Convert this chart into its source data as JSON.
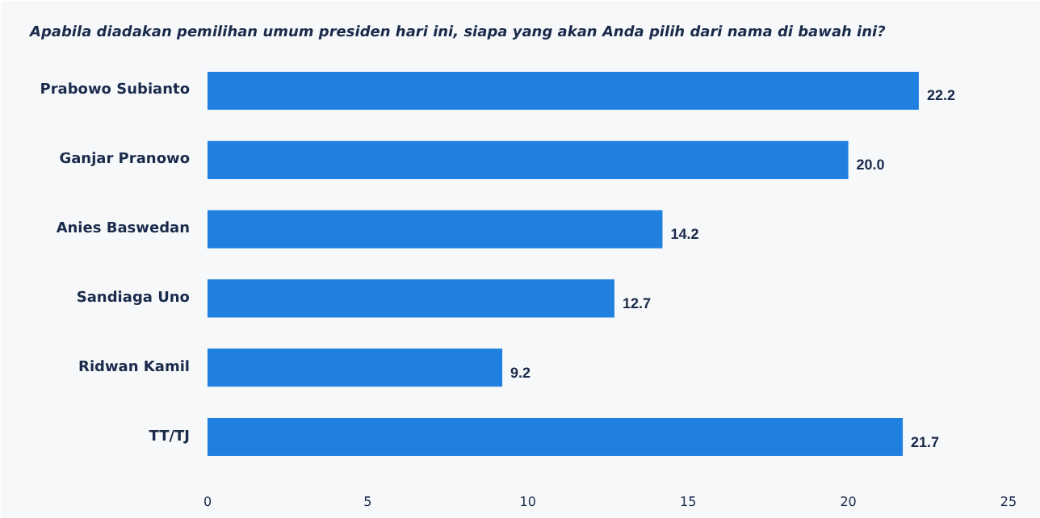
{
  "chart_data": {
    "type": "bar",
    "orientation": "horizontal",
    "title": "Apabila diadakan pemilihan umum presiden hari ini, siapa yang akan Anda pilih dari nama di bawah ini?",
    "categories": [
      "Prabowo Subianto",
      "Ganjar Pranowo",
      "Anies Baswedan",
      "Sandiaga Uno",
      "Ridwan Kamil",
      "TT/TJ"
    ],
    "values": [
      22.2,
      20.0,
      14.2,
      12.7,
      9.2,
      21.7
    ],
    "value_labels": [
      "22.2",
      "20.0",
      "14.2",
      "12.7",
      "9.2",
      "21.7"
    ],
    "color": "#1f80e0",
    "xlim": [
      0,
      25
    ],
    "xticks": [
      0,
      5,
      10,
      15,
      20,
      25
    ],
    "grid": false
  }
}
